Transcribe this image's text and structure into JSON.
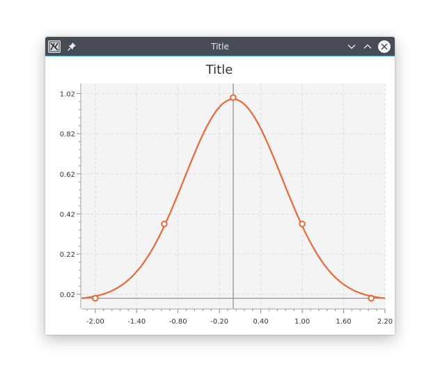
{
  "window": {
    "title": "Title",
    "icons": {
      "app": "app-icon",
      "pin": "pin-icon",
      "minimize": "chevron-down-icon",
      "maximize": "chevron-up-icon",
      "close": "close-icon"
    }
  },
  "chart_data": {
    "type": "line",
    "title": "Title",
    "xlabel": "",
    "ylabel": "",
    "xlim": [
      -2.2,
      2.2
    ],
    "ylim": [
      -0.05,
      1.07
    ],
    "xticks": [
      "-2.00",
      "-1.40",
      "-0.80",
      "-0.20",
      "0.40",
      "1.00",
      "1.60",
      "2.20"
    ],
    "yticks": [
      "0.02",
      "0.22",
      "0.42",
      "0.62",
      "0.82",
      "1.02"
    ],
    "grid": true,
    "zero_lines": true,
    "series": [
      {
        "color": "#ee6633",
        "curve": "gaussian",
        "x": [
          -2.2,
          -2.1,
          -2.0,
          -1.9,
          -1.8,
          -1.7,
          -1.6,
          -1.5,
          -1.4,
          -1.3,
          -1.2,
          -1.1,
          -1.0,
          -0.9,
          -0.8,
          -0.7,
          -0.6,
          -0.5,
          -0.4,
          -0.3,
          -0.2,
          -0.1,
          0.0,
          0.1,
          0.2,
          0.3,
          0.4,
          0.5,
          0.6,
          0.7,
          0.8,
          0.9,
          1.0,
          1.1,
          1.2,
          1.3,
          1.4,
          1.5,
          1.6,
          1.7,
          1.8,
          1.9,
          2.0,
          2.1,
          2.2
        ],
        "y": [
          -0.008,
          -0.003,
          0.0,
          0.008,
          0.02,
          0.035,
          0.058,
          0.09,
          0.132,
          0.184,
          0.245,
          0.31,
          0.37,
          0.445,
          0.53,
          0.62,
          0.71,
          0.79,
          0.865,
          0.925,
          0.97,
          0.993,
          1.0,
          0.993,
          0.97,
          0.925,
          0.865,
          0.79,
          0.71,
          0.62,
          0.53,
          0.445,
          0.37,
          0.31,
          0.245,
          0.184,
          0.132,
          0.09,
          0.058,
          0.035,
          0.02,
          0.008,
          0.0,
          -0.003,
          -0.008
        ],
        "markers": [
          {
            "x": -2.0,
            "y": 0.0
          },
          {
            "x": -1.0,
            "y": 0.37
          },
          {
            "x": 0.0,
            "y": 1.0
          },
          {
            "x": 1.0,
            "y": 0.37
          },
          {
            "x": 2.0,
            "y": 0.0
          }
        ]
      }
    ]
  }
}
